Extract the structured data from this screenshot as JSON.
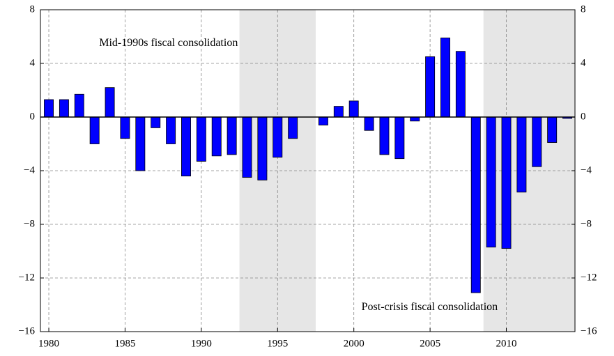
{
  "chart_data": {
    "type": "bar",
    "x": [
      1980,
      1981,
      1982,
      1983,
      1984,
      1985,
      1986,
      1987,
      1988,
      1989,
      1990,
      1991,
      1992,
      1993,
      1994,
      1995,
      1996,
      1998,
      1999,
      2000,
      2001,
      2002,
      2003,
      2004,
      2005,
      2006,
      2007,
      2008,
      2009,
      2010,
      2011,
      2012,
      2013,
      2014
    ],
    "series": [
      {
        "color": "#0000ff",
        "values": [
          1.3,
          1.3,
          1.7,
          -2.0,
          2.2,
          -1.6,
          -4.0,
          -0.8,
          -2.0,
          -4.4,
          -3.3,
          -2.9,
          -2.8,
          -4.5,
          -4.7,
          -3.0,
          -1.6,
          -0.6,
          0.8,
          1.2,
          -1.0,
          -2.8,
          -3.1,
          -0.3,
          4.5,
          5.9,
          4.9,
          -13.1,
          -9.7,
          -9.8,
          -5.6,
          -3.7,
          -1.9,
          -0.1
        ]
      }
    ],
    "xlim": [
      1979.45,
      2014.5
    ],
    "xticks": [
      1980,
      1985,
      1990,
      1995,
      2000,
      2005,
      2010
    ],
    "ylim": [
      -16,
      8
    ],
    "yticks": [
      {
        "value": -16,
        "label": "−16"
      },
      {
        "value": -12,
        "label": "−12"
      },
      {
        "value": -8,
        "label": "−8"
      },
      {
        "value": -4,
        "label": "−4"
      },
      0,
      4,
      8
    ],
    "y2lim": [
      -16,
      8
    ],
    "y2ticks": [
      {
        "value": -16,
        "label": "−16"
      },
      {
        "value": -12,
        "label": "−12"
      },
      {
        "value": -8,
        "label": "−8"
      },
      {
        "value": -4,
        "label": "−4"
      },
      0,
      4,
      8
    ],
    "grid": true,
    "shaded_regions": [
      [
        1992.5,
        1997.5
      ],
      [
        2008.5,
        2014.5
      ]
    ],
    "shade_color": "#e6e6e6",
    "annotations": [
      {
        "text": "Mid-1990s fiscal consolidation",
        "x": 1983.3,
        "y": 5.5
      },
      {
        "text": "Post-crisis fiscal consolidation",
        "x": 2000.5,
        "y": -14.2
      }
    ]
  }
}
